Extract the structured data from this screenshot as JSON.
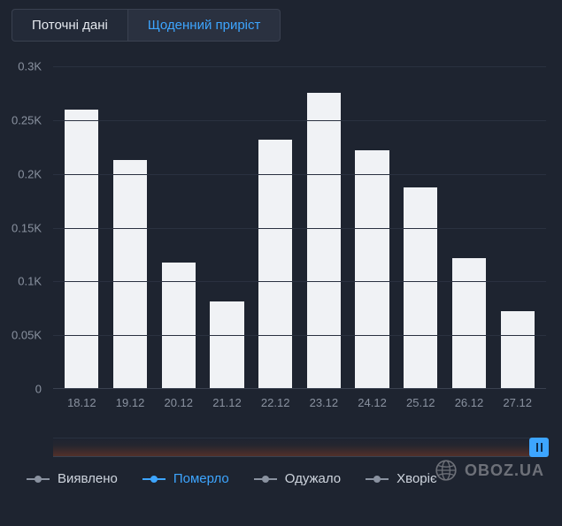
{
  "tabs": {
    "current": "Поточні дані",
    "daily": "Щоденний приріст",
    "active_index": 1
  },
  "chart": {
    "type": "bar",
    "background_color": "#1e2430",
    "bar_color": "#f0f2f5",
    "grid_color": "#2a3140",
    "axis_text_color": "#8a92a0",
    "ylim": [
      0,
      0.3
    ],
    "yticks": [
      {
        "v": 0,
        "label": "0"
      },
      {
        "v": 0.05,
        "label": "0.05K"
      },
      {
        "v": 0.1,
        "label": "0.1K"
      },
      {
        "v": 0.15,
        "label": "0.15K"
      },
      {
        "v": 0.2,
        "label": "0.2K"
      },
      {
        "v": 0.25,
        "label": "0.25K"
      },
      {
        "v": 0.3,
        "label": "0.3K"
      }
    ],
    "categories": [
      "18.12",
      "19.12",
      "20.12",
      "21.12",
      "22.12",
      "23.12",
      "24.12",
      "25.12",
      "26.12",
      "27.12"
    ],
    "values": [
      0.26,
      0.213,
      0.117,
      0.081,
      0.232,
      0.275,
      0.222,
      0.187,
      0.121,
      0.072
    ],
    "bar_width_ratio": 0.7
  },
  "navigator": {
    "area_color": "rgba(180,70,30,0.35)",
    "handle_color": "#3da5ff"
  },
  "legend": {
    "items": [
      {
        "key": "detected",
        "label": "Виявлено",
        "active": false
      },
      {
        "key": "died",
        "label": "Померло",
        "active": true
      },
      {
        "key": "recovered",
        "label": "Одужало",
        "active": false
      },
      {
        "key": "sick",
        "label": "Хворіє",
        "active": false
      }
    ],
    "inactive_color": "#8a92a0",
    "active_color": "#3da5ff"
  },
  "watermark": {
    "text": "OBOZ.UA"
  }
}
